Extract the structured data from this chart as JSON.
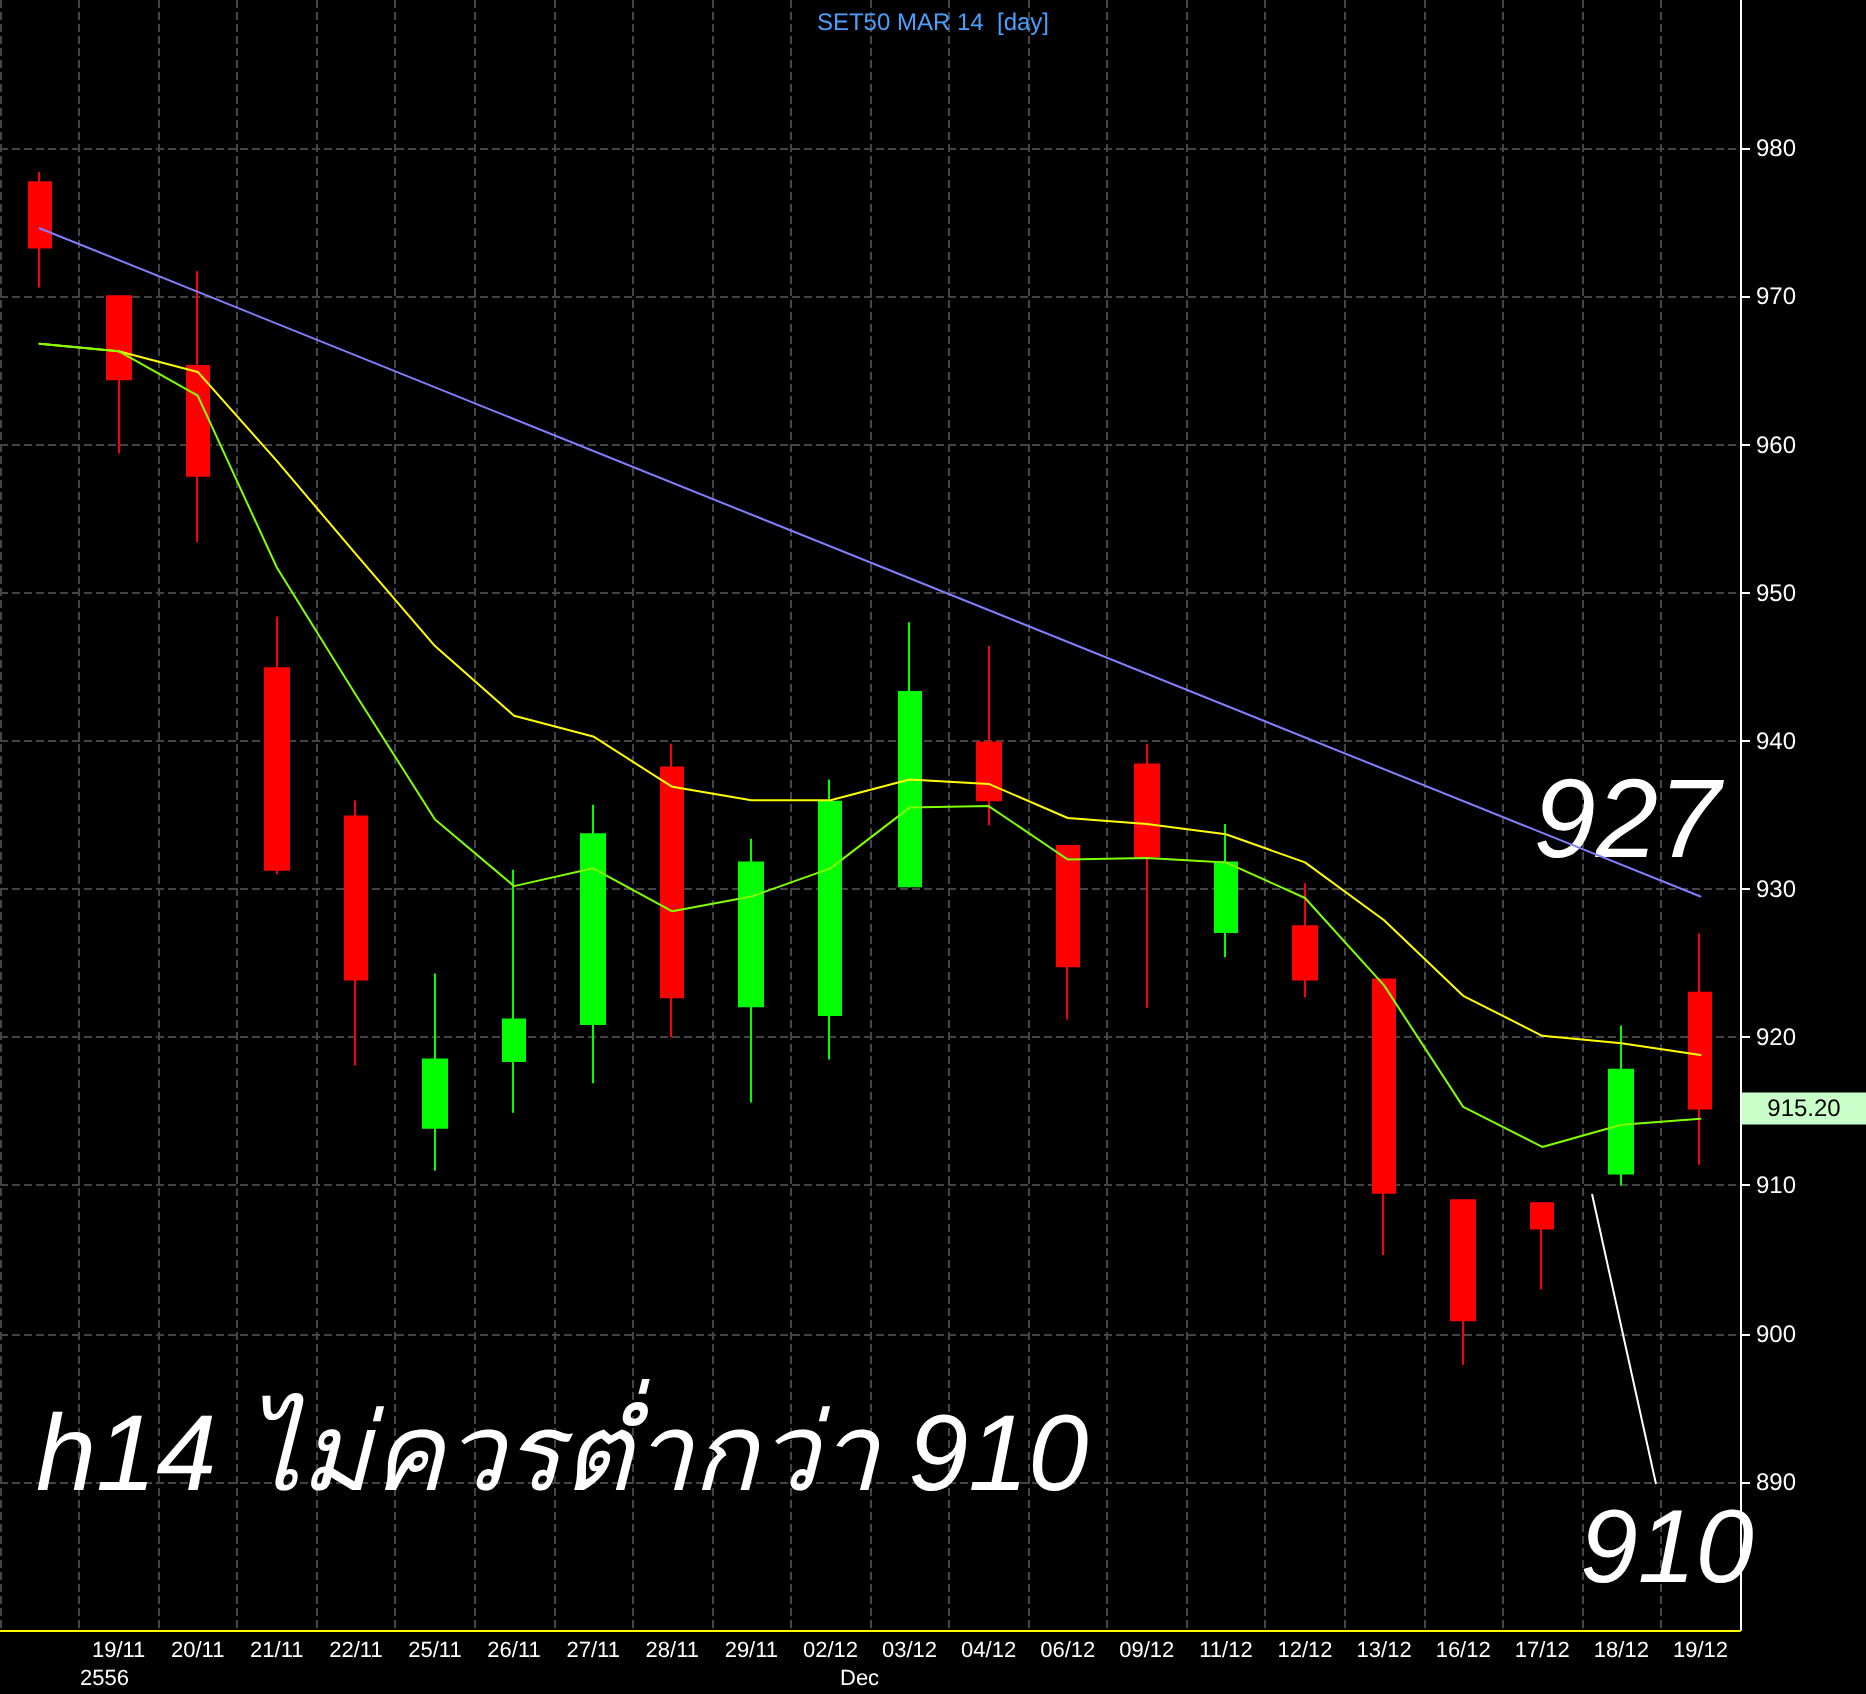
{
  "chart_data": {
    "type": "candlestick",
    "title": "SET50 MAR 14  [day]",
    "categories": [
      null,
      "19/11",
      "20/11",
      "21/11",
      "22/11",
      "25/11",
      "26/11",
      "27/11",
      "28/11",
      "29/11",
      "02/12",
      "03/12",
      "04/12",
      "06/12",
      "09/12",
      "11/12",
      "12/12",
      "13/12",
      "16/12",
      "17/12",
      "18/12",
      "19/12"
    ],
    "ohlc": [
      [
        977.7,
        978.4,
        970.6,
        973.3
      ],
      [
        970,
        970,
        959.4,
        964.4
      ],
      [
        965.3,
        971.7,
        953.4,
        957.9
      ],
      [
        944.9,
        948.4,
        931,
        931.3
      ],
      [
        934.9,
        936,
        918.1,
        923.9
      ],
      [
        913.9,
        924.3,
        911,
        918.5
      ],
      [
        918.4,
        931.3,
        914.9,
        921.2
      ],
      [
        920.9,
        935.7,
        916.9,
        933.7
      ],
      [
        938.2,
        939.8,
        920,
        922.7
      ],
      [
        922.1,
        933.4,
        915.6,
        931.8
      ],
      [
        921.5,
        937.4,
        918.5,
        935.9
      ],
      [
        930.2,
        948,
        930.1,
        943.3
      ],
      [
        939.9,
        946.4,
        934.3,
        936
      ],
      [
        932.9,
        933,
        921.2,
        924.8
      ],
      [
        938.4,
        939.8,
        922,
        932.2
      ],
      [
        927.1,
        934.4,
        925.4,
        931.8
      ],
      [
        927.5,
        930.4,
        922.7,
        923.9
      ],
      [
        923.9,
        923.9,
        905.3,
        909.5
      ],
      [
        909,
        909,
        897.9,
        900.9
      ],
      [
        908.8,
        908.8,
        903,
        907.1
      ],
      [
        910.8,
        920.8,
        910,
        917.8
      ],
      [
        923,
        927,
        911.4,
        915.2
      ]
    ],
    "series": [
      {
        "type": "line",
        "color": "#ffff00",
        "values": [
          966.8,
          966.3,
          964.9,
          958.9,
          952.6,
          946.4,
          941.7,
          940.3,
          936.9,
          936,
          936,
          937.4,
          937.1,
          934.8,
          934.4,
          933.7,
          931.8,
          927.9,
          922.8,
          920.1,
          919.6,
          918.8
        ]
      },
      {
        "type": "line",
        "color": "#80ff00",
        "values": [
          966.8,
          966.3,
          963.3,
          951.7,
          943.1,
          934.7,
          930.2,
          931.4,
          928.5,
          929.5,
          931.4,
          935.5,
          935.6,
          932,
          932.1,
          931.8,
          929.4,
          923.5,
          915.3,
          912.6,
          914.1,
          914.5
        ]
      },
      {
        "type": "line",
        "color": "#8080ff",
        "values": [
          974.6,
          null,
          null,
          null,
          null,
          null,
          null,
          null,
          null,
          null,
          null,
          null,
          null,
          null,
          null,
          null,
          null,
          null,
          null,
          null,
          null,
          929.5
        ]
      }
    ],
    "ylim": [
      880,
      990
    ],
    "yticks": [
      890,
      900,
      910,
      920,
      930,
      940,
      950,
      960,
      970,
      980
    ],
    "grid": true,
    "marker": "none",
    "line_style": "solid",
    "annotations": [
      "h14 ไม่ควรต่ำกว่า 910",
      "2556",
      "Dec",
      {
        "text": "927",
        "x": "19/12",
        "y": 927
      },
      "910",
      {
        "text": "915.20",
        "x": "19/12",
        "y": 915.2
      }
    ]
  }
}
